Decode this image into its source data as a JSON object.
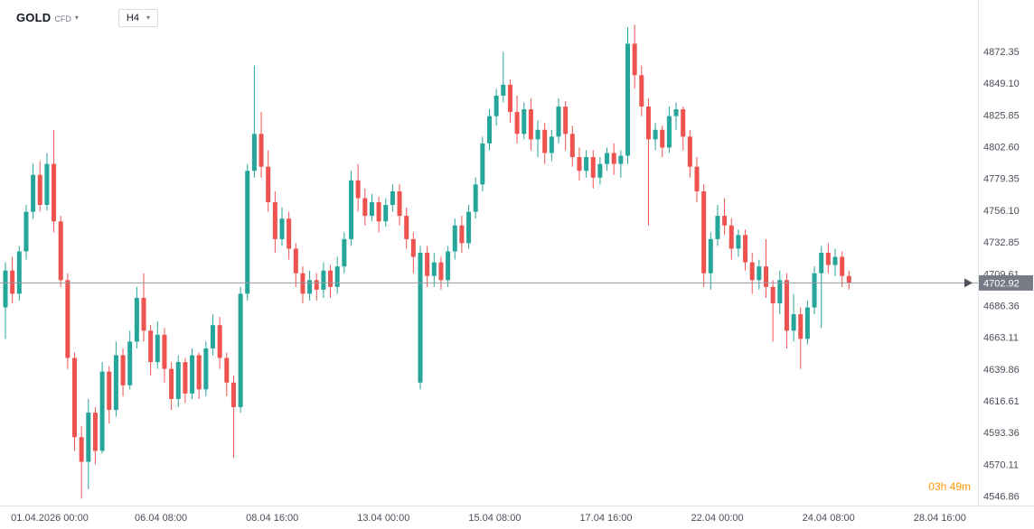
{
  "header": {
    "symbol": "GOLD",
    "instrument_type": "CFD",
    "timeframe": "H4"
  },
  "icons": {
    "chevron_down": "▾"
  },
  "footer": {
    "countdown": "03h 49m"
  },
  "colors": {
    "up": "#26a69a",
    "down": "#ef5350",
    "axis_text": "#4a4e59",
    "axis_border": "#e0e3eb",
    "price_line": "#9598a1",
    "price_arrow": "#50535e",
    "badge_bg": "#787b86",
    "badge_text": "#ffffff",
    "countdown": "#ff9800"
  },
  "price_axis": {
    "labels": [
      "4872.35",
      "4849.10",
      "4825.85",
      "4802.60",
      "4779.35",
      "4756.10",
      "4732.85",
      "4709.61",
      "4686.36",
      "4663.11",
      "4639.86",
      "4616.61",
      "4593.36",
      "4570.11",
      "4546.86"
    ],
    "current_price": "4702.92"
  },
  "time_axis": {
    "labels": [
      "01.04.2026 00:00",
      "06.04 08:00",
      "08.04 16:00",
      "13.04 00:00",
      "15.04 08:00",
      "17.04 16:00",
      "22.04 00:00",
      "24.04 08:00",
      "28.04 16:00"
    ]
  },
  "chart_data": {
    "type": "candlestick",
    "title": "GOLD CFD H4",
    "xlabel": "date/time",
    "ylabel": "price (USD)",
    "price_range": [
      4540,
      4910
    ],
    "current_price": 4702.92,
    "bar_spacing": 7.65,
    "grid": false,
    "candles": [
      [
        4685,
        4718,
        4662,
        4712
      ],
      [
        4712,
        4722,
        4688,
        4695
      ],
      [
        4695,
        4730,
        4690,
        4726
      ],
      [
        4726,
        4760,
        4720,
        4755
      ],
      [
        4755,
        4790,
        4750,
        4782
      ],
      [
        4782,
        4792,
        4755,
        4760
      ],
      [
        4760,
        4798,
        4756,
        4790
      ],
      [
        4790,
        4815,
        4740,
        4748
      ],
      [
        4748,
        4752,
        4700,
        4705
      ],
      [
        4705,
        4710,
        4640,
        4648
      ],
      [
        4648,
        4652,
        4580,
        4590
      ],
      [
        4590,
        4598,
        4545,
        4572
      ],
      [
        4572,
        4618,
        4552,
        4608
      ],
      [
        4608,
        4612,
        4570,
        4580
      ],
      [
        4580,
        4645,
        4578,
        4638
      ],
      [
        4638,
        4642,
        4600,
        4610
      ],
      [
        4610,
        4660,
        4605,
        4650
      ],
      [
        4650,
        4655,
        4620,
        4628
      ],
      [
        4628,
        4668,
        4625,
        4660
      ],
      [
        4660,
        4700,
        4655,
        4692
      ],
      [
        4692,
        4710,
        4660,
        4668
      ],
      [
        4668,
        4672,
        4635,
        4645
      ],
      [
        4645,
        4675,
        4640,
        4665
      ],
      [
        4665,
        4670,
        4630,
        4640
      ],
      [
        4640,
        4645,
        4610,
        4618
      ],
      [
        4618,
        4650,
        4612,
        4645
      ],
      [
        4645,
        4648,
        4615,
        4622
      ],
      [
        4622,
        4655,
        4618,
        4650
      ],
      [
        4650,
        4652,
        4618,
        4625
      ],
      [
        4625,
        4660,
        4620,
        4655
      ],
      [
        4655,
        4680,
        4650,
        4672
      ],
      [
        4672,
        4678,
        4640,
        4648
      ],
      [
        4648,
        4652,
        4620,
        4630
      ],
      [
        4630,
        4635,
        4575,
        4612
      ],
      [
        4612,
        4700,
        4608,
        4695
      ],
      [
        4695,
        4790,
        4690,
        4785
      ],
      [
        4785,
        4862,
        4780,
        4812
      ],
      [
        4812,
        4828,
        4780,
        4788
      ],
      [
        4788,
        4800,
        4755,
        4762
      ],
      [
        4762,
        4770,
        4725,
        4735
      ],
      [
        4735,
        4758,
        4730,
        4750
      ],
      [
        4750,
        4755,
        4720,
        4728
      ],
      [
        4728,
        4732,
        4700,
        4710
      ],
      [
        4710,
        4715,
        4688,
        4695
      ],
      [
        4695,
        4712,
        4690,
        4705
      ],
      [
        4705,
        4710,
        4690,
        4698
      ],
      [
        4698,
        4718,
        4692,
        4712
      ],
      [
        4712,
        4716,
        4692,
        4700
      ],
      [
        4700,
        4722,
        4695,
        4715
      ],
      [
        4715,
        4740,
        4710,
        4735
      ],
      [
        4735,
        4785,
        4730,
        4778
      ],
      [
        4778,
        4790,
        4755,
        4765
      ],
      [
        4765,
        4772,
        4745,
        4752
      ],
      [
        4752,
        4768,
        4748,
        4762
      ],
      [
        4762,
        4766,
        4740,
        4748
      ],
      [
        4748,
        4765,
        4744,
        4760
      ],
      [
        4760,
        4775,
        4755,
        4770
      ],
      [
        4770,
        4775,
        4745,
        4752
      ],
      [
        4752,
        4758,
        4728,
        4735
      ],
      [
        4735,
        4740,
        4710,
        4722
      ],
      [
        4630,
        4730,
        4625,
        4725
      ],
      [
        4725,
        4730,
        4700,
        4708
      ],
      [
        4708,
        4725,
        4700,
        4718
      ],
      [
        4718,
        4722,
        4698,
        4705
      ],
      [
        4705,
        4730,
        4700,
        4726
      ],
      [
        4726,
        4750,
        4720,
        4745
      ],
      [
        4745,
        4752,
        4725,
        4732
      ],
      [
        4732,
        4760,
        4728,
        4755
      ],
      [
        4755,
        4780,
        4750,
        4775
      ],
      [
        4775,
        4810,
        4770,
        4805
      ],
      [
        4805,
        4830,
        4800,
        4825
      ],
      [
        4825,
        4845,
        4818,
        4840
      ],
      [
        4840,
        4872,
        4835,
        4848
      ],
      [
        4848,
        4852,
        4820,
        4828
      ],
      [
        4828,
        4840,
        4805,
        4812
      ],
      [
        4812,
        4835,
        4808,
        4830
      ],
      [
        4830,
        4838,
        4800,
        4808
      ],
      [
        4808,
        4822,
        4795,
        4815
      ],
      [
        4815,
        4820,
        4790,
        4798
      ],
      [
        4798,
        4815,
        4792,
        4810
      ],
      [
        4810,
        4838,
        4805,
        4832
      ],
      [
        4832,
        4836,
        4800,
        4812
      ],
      [
        4812,
        4818,
        4788,
        4795
      ],
      [
        4795,
        4802,
        4778,
        4785
      ],
      [
        4785,
        4800,
        4780,
        4795
      ],
      [
        4795,
        4800,
        4772,
        4780
      ],
      [
        4780,
        4795,
        4775,
        4790
      ],
      [
        4790,
        4802,
        4785,
        4798
      ],
      [
        4798,
        4805,
        4782,
        4790
      ],
      [
        4790,
        4800,
        4780,
        4796
      ],
      [
        4796,
        4890,
        4790,
        4878
      ],
      [
        4878,
        4892,
        4845,
        4855
      ],
      [
        4855,
        4862,
        4825,
        4832
      ],
      [
        4832,
        4838,
        4745,
        4808
      ],
      [
        4808,
        4820,
        4800,
        4815
      ],
      [
        4815,
        4818,
        4795,
        4802
      ],
      [
        4802,
        4832,
        4798,
        4825
      ],
      [
        4825,
        4835,
        4815,
        4830
      ],
      [
        4830,
        4832,
        4800,
        4810
      ],
      [
        4810,
        4815,
        4780,
        4788
      ],
      [
        4788,
        4795,
        4762,
        4770
      ],
      [
        4770,
        4775,
        4700,
        4710
      ],
      [
        4710,
        4740,
        4698,
        4735
      ],
      [
        4735,
        4760,
        4730,
        4752
      ],
      [
        4752,
        4765,
        4738,
        4745
      ],
      [
        4745,
        4750,
        4720,
        4728
      ],
      [
        4728,
        4742,
        4722,
        4738
      ],
      [
        4738,
        4742,
        4712,
        4718
      ],
      [
        4718,
        4725,
        4695,
        4705
      ],
      [
        4705,
        4720,
        4698,
        4715
      ],
      [
        4715,
        4735,
        4692,
        4700
      ],
      [
        4700,
        4705,
        4660,
        4688
      ],
      [
        4688,
        4712,
        4680,
        4705
      ],
      [
        4705,
        4710,
        4655,
        4668
      ],
      [
        4668,
        4695,
        4660,
        4680
      ],
      [
        4680,
        4685,
        4640,
        4662
      ],
      [
        4662,
        4690,
        4658,
        4685
      ],
      [
        4685,
        4715,
        4680,
        4710
      ],
      [
        4710,
        4730,
        4670,
        4725
      ],
      [
        4725,
        4732,
        4710,
        4716
      ],
      [
        4716,
        4728,
        4708,
        4722
      ],
      [
        4722,
        4726,
        4700,
        4708
      ],
      [
        4708,
        4712,
        4698,
        4702.92
      ]
    ]
  }
}
